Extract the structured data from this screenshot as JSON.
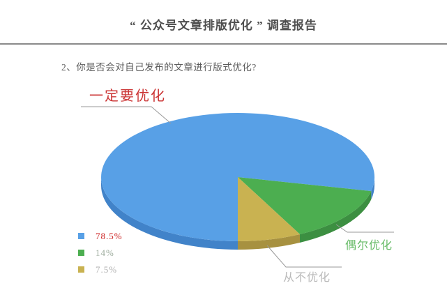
{
  "page": {
    "title": "“ 公众号文章排版优化 ” 调查报告"
  },
  "chart_data": {
    "type": "pie",
    "style": "3d",
    "caption": "2、你是否会对自己发布的文章进行版式优化?",
    "start_angle_deg": 90,
    "direction": "clockwise",
    "legend_position": "bottom-left",
    "leader_line_color": "#999999",
    "slices": [
      {
        "label": "一定要优化",
        "value": 78.5,
        "value_label": "78.5%",
        "color": "#58a0e6",
        "rim_color": "#4183c9",
        "label_color": "#cb3434",
        "value_color": "#cc2222"
      },
      {
        "label": "偶尔优化",
        "value": 14,
        "value_label": "14%",
        "color": "#4cae50",
        "rim_color": "#3c8f41",
        "label_color": "#67bb67",
        "value_color": "#9cab9c"
      },
      {
        "label": "从不优化",
        "value": 7.5,
        "value_label": "7.5%",
        "color": "#c9b251",
        "rim_color": "#a79140",
        "label_color": "#b9b9b9",
        "value_color": "#b0b0b0"
      }
    ]
  }
}
